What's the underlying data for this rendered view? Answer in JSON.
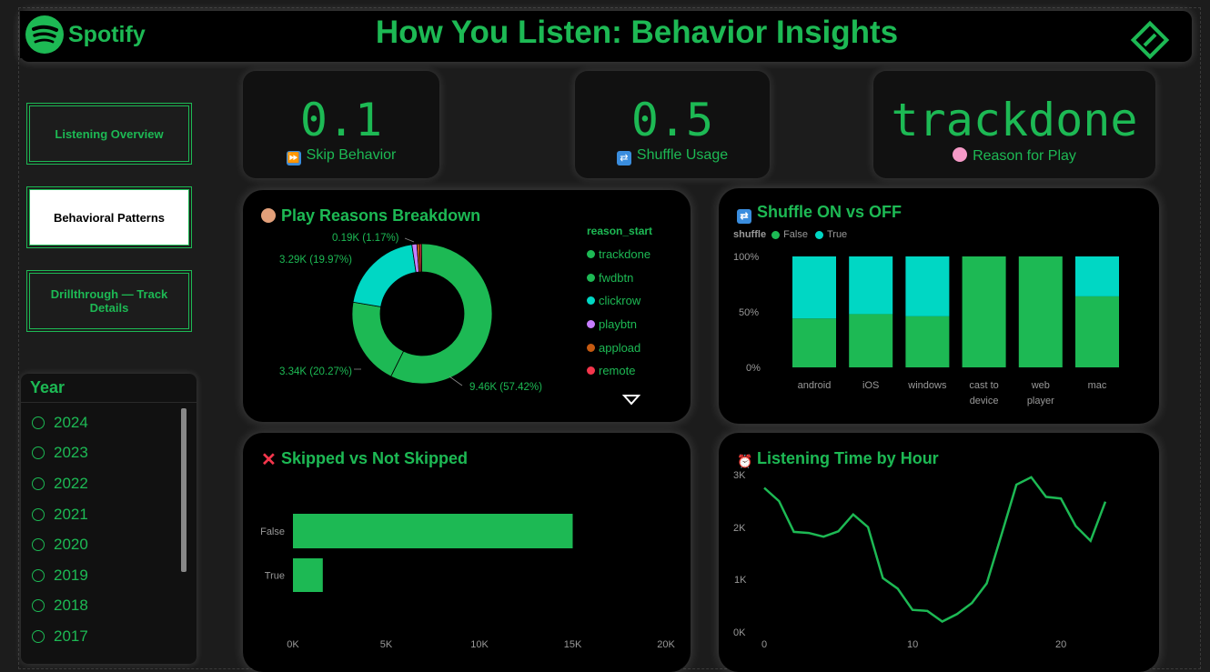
{
  "header": {
    "logo_text": "Spotify",
    "title": "How You Listen: Behavior Insights",
    "corner_icon": "diamond-ticket-icon"
  },
  "nav": [
    {
      "label": "Listening Overview",
      "active": false
    },
    {
      "label": "Behavioral Patterns",
      "active": true
    },
    {
      "label": "Drillthrough — Track Details",
      "active": false
    }
  ],
  "year_slicer": {
    "title": "Year",
    "items": [
      "2024",
      "2023",
      "2022",
      "2021",
      "2020",
      "2019",
      "2018",
      "2017"
    ]
  },
  "kpis": [
    {
      "value": "0.1",
      "label": "Skip Behavior",
      "icon": "fast-forward-icon"
    },
    {
      "value": "0.5",
      "label": "Shuffle Usage",
      "icon": "shuffle-icon"
    },
    {
      "value": "trackdone",
      "label": "Reason for Play",
      "icon": "brain-icon"
    }
  ],
  "donut": {
    "title": "Play Reasons Breakdown",
    "legend_title": "reason_start",
    "labels": {
      "trackdone": "9.46K (57.42%)",
      "fwdbtn": "3.34K (20.27%)",
      "clickrow": "3.29K (19.97%)",
      "small": "0.19K (1.17%)"
    }
  },
  "shuffle_chart": {
    "title": "Shuffle ON vs OFF",
    "legend_title": "shuffle",
    "legend": [
      "False",
      "True"
    ],
    "y_ticks": [
      "100%",
      "50%",
      "0%"
    ],
    "categories": [
      [
        "android"
      ],
      [
        "iOS"
      ],
      [
        "windows"
      ],
      [
        "cast to",
        "device"
      ],
      [
        "web",
        "player"
      ],
      [
        "mac"
      ]
    ]
  },
  "skip_chart": {
    "title": "Skipped vs Not Skipped",
    "x_ticks": [
      "0K",
      "5K",
      "10K",
      "15K",
      "20K"
    ]
  },
  "hour_chart": {
    "title": "Listening Time by Hour",
    "y_ticks": [
      "3K",
      "2K",
      "1K",
      "0K"
    ],
    "x_ticks": [
      "0",
      "10",
      "20"
    ]
  },
  "colors": {
    "green": "#1DB954",
    "teal": "#00D7C4",
    "purple": "#C77DFF",
    "orange": "#C55A11",
    "red": "#F4364C"
  },
  "chart_data": [
    {
      "type": "pie",
      "title": "Play Reasons Breakdown",
      "legend_title": "reason_start",
      "categories": [
        "trackdone",
        "fwdbtn",
        "clickrow",
        "playbtn",
        "appload",
        "remote"
      ],
      "values": [
        9460,
        3340,
        3290,
        190,
        100,
        70
      ],
      "percent_labels": [
        "57.42%",
        "20.27%",
        "19.97%",
        "1.17%",
        "",
        ""
      ]
    },
    {
      "type": "bar",
      "stacked": "100%",
      "title": "Shuffle ON vs OFF",
      "categories": [
        "android",
        "iOS",
        "windows",
        "cast to device",
        "web player",
        "mac"
      ],
      "series": [
        {
          "name": "False",
          "values": [
            0.44,
            0.48,
            0.46,
            1.0,
            1.0,
            0.64
          ]
        },
        {
          "name": "True",
          "values": [
            0.56,
            0.52,
            0.54,
            0.0,
            0.0,
            0.36
          ]
        }
      ],
      "ylim": [
        0,
        1
      ]
    },
    {
      "type": "bar",
      "orientation": "horizontal",
      "title": "Skipped vs Not Skipped",
      "categories": [
        "False",
        "True"
      ],
      "values": [
        15000,
        1600
      ],
      "xlim": [
        0,
        20000
      ]
    },
    {
      "type": "line",
      "title": "Listening Time by Hour",
      "x": [
        0,
        1,
        2,
        3,
        4,
        5,
        6,
        7,
        8,
        9,
        10,
        11,
        12,
        13,
        14,
        15,
        16,
        17,
        18,
        19,
        20,
        21,
        22,
        23
      ],
      "y": [
        2700,
        2450,
        1870,
        1850,
        1780,
        1880,
        2200,
        1960,
        1000,
        800,
        400,
        380,
        180,
        320,
        530,
        900,
        1820,
        2760,
        2900,
        2530,
        2500,
        1980,
        1700,
        2440
      ],
      "ylim": [
        0,
        3000
      ],
      "xlim": [
        0,
        23
      ]
    }
  ]
}
